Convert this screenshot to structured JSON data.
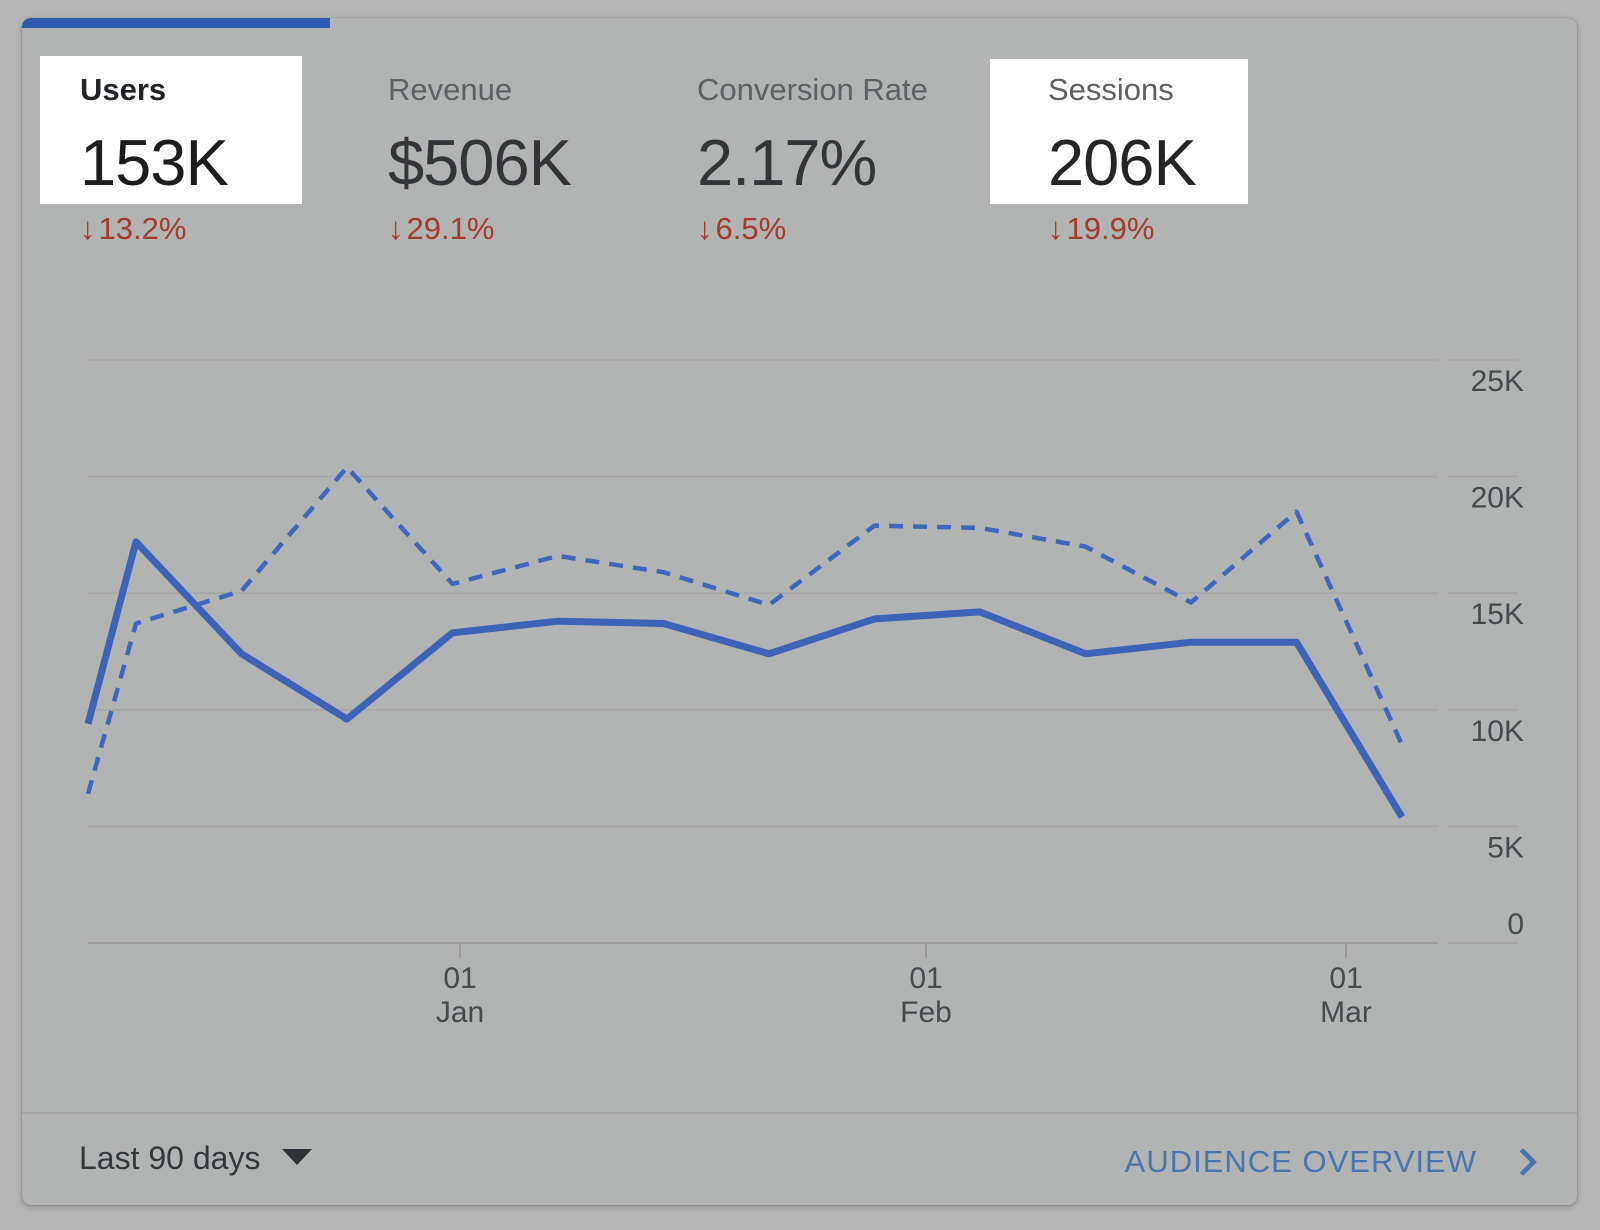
{
  "card": {
    "tab_indicator_color": "#2d59b0",
    "delta_arrow_glyph": "↓",
    "metrics": [
      {
        "id": "users",
        "label": "Users",
        "value": "153K",
        "delta": "13.2%",
        "delta_direction": "down",
        "highlighted": true
      },
      {
        "id": "revenue",
        "label": "Revenue",
        "value": "$506K",
        "delta": "29.1%",
        "delta_direction": "down",
        "highlighted": false
      },
      {
        "id": "conversion-rate",
        "label": "Conversion Rate",
        "value": "2.17%",
        "delta": "6.5%",
        "delta_direction": "down",
        "highlighted": false
      },
      {
        "id": "sessions",
        "label": "Sessions",
        "value": "206K",
        "delta": "19.9%",
        "delta_direction": "down",
        "highlighted": true
      }
    ],
    "footer": {
      "date_range": "Last 90 days",
      "overview_link": "AUDIENCE OVERVIEW"
    },
    "colors": {
      "delta_negative": "#a33a2d",
      "link_blue": "#4b74ad",
      "highlight_box": "#ffffff"
    }
  },
  "chart_data": {
    "type": "line",
    "title": "",
    "xlabel": "",
    "ylabel": "",
    "ylim": [
      0,
      25000
    ],
    "grid": "horizontal",
    "y_ticks": [
      {
        "label": "25K",
        "value_k": 25
      },
      {
        "label": "20K",
        "value_k": 20
      },
      {
        "label": "15K",
        "value_k": 15
      },
      {
        "label": "10K",
        "value_k": 10
      },
      {
        "label": "5K",
        "value_k": 5
      },
      {
        "label": "0",
        "value_k": 0
      }
    ],
    "x_tick_labels": [
      {
        "day": "01",
        "month": "Jan"
      },
      {
        "day": "01",
        "month": "Feb"
      },
      {
        "day": "01",
        "month": "Mar"
      }
    ],
    "series": [
      {
        "name": "Users",
        "style": "solid",
        "color": "#3c63b8",
        "values_k": [
          9.4,
          17.2,
          12.4,
          9.6,
          13.3,
          13.8,
          13.7,
          12.4,
          13.9,
          14.2,
          12.4,
          12.9,
          12.9,
          5.4
        ]
      },
      {
        "name": "Sessions",
        "style": "dashed",
        "color": "#3e66bd",
        "values_k": [
          6.4,
          13.7,
          15.1,
          20.4,
          15.4,
          16.6,
          15.9,
          14.5,
          17.9,
          17.8,
          17.0,
          14.6,
          18.5,
          8.5
        ]
      }
    ]
  }
}
